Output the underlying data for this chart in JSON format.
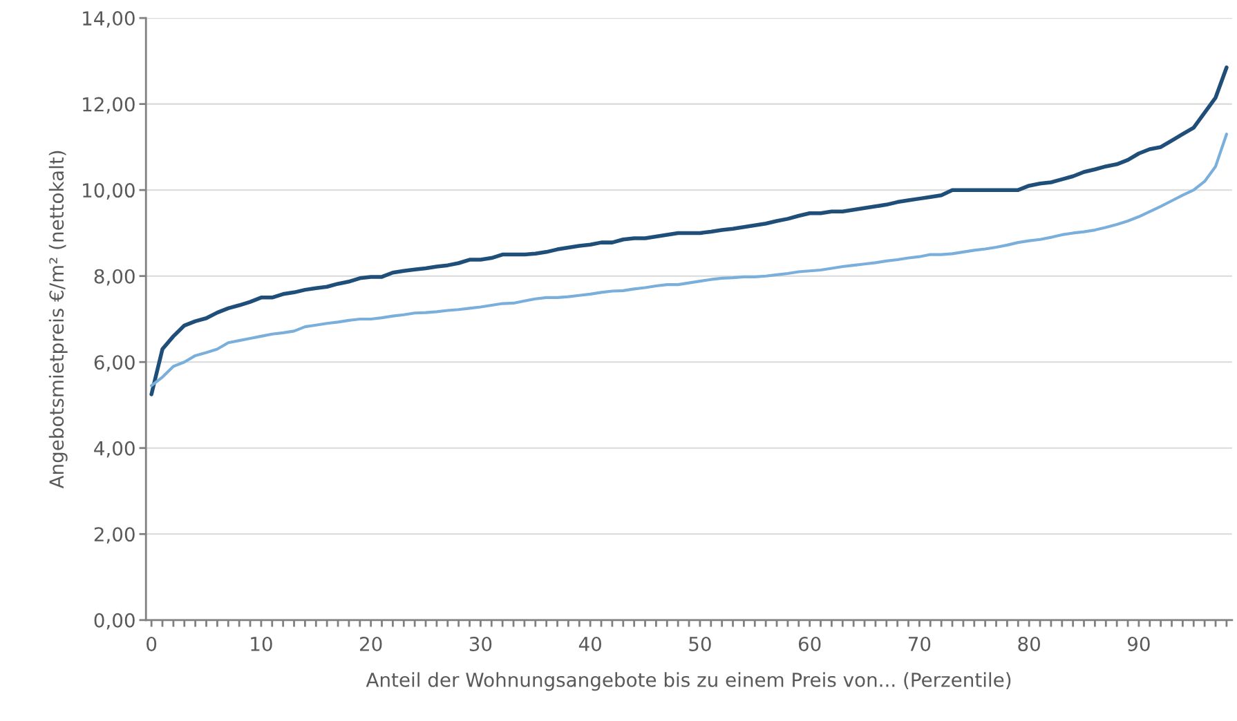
{
  "chart_data": {
    "type": "line",
    "xlabel": "Anteil der Wohnungsangebote bis zu einem Preis von... (Perzentile)",
    "ylabel": "Angebotsmietpreis €/m² (nettokalt)",
    "categories": [
      "0",
      null,
      null,
      null,
      null,
      null,
      null,
      null,
      null,
      null,
      "10",
      null,
      null,
      null,
      null,
      null,
      null,
      null,
      null,
      null,
      "20",
      null,
      null,
      null,
      null,
      null,
      null,
      null,
      null,
      null,
      "30",
      null,
      null,
      null,
      null,
      null,
      null,
      null,
      null,
      null,
      "40",
      null,
      null,
      null,
      null,
      null,
      null,
      null,
      null,
      null,
      "50",
      null,
      null,
      null,
      null,
      null,
      null,
      null,
      null,
      null,
      "60",
      null,
      null,
      null,
      null,
      null,
      null,
      null,
      null,
      null,
      "70",
      null,
      null,
      null,
      null,
      null,
      null,
      null,
      null,
      null,
      "80",
      null,
      null,
      null,
      null,
      null,
      null,
      null,
      null,
      null,
      "90",
      null,
      null,
      null,
      null,
      null,
      null,
      null,
      null
    ],
    "series": [
      {
        "color": "#1f4e79",
        "values": [
          5.25,
          6.3,
          6.6,
          6.85,
          6.95,
          7.02,
          7.15,
          7.25,
          7.32,
          7.4,
          7.5,
          7.5,
          7.58,
          7.62,
          7.68,
          7.72,
          7.75,
          7.82,
          7.87,
          7.95,
          7.98,
          7.98,
          8.08,
          8.12,
          8.15,
          8.18,
          8.22,
          8.25,
          8.3,
          8.38,
          8.38,
          8.42,
          8.5,
          8.5,
          8.5,
          8.52,
          8.56,
          8.62,
          8.66,
          8.7,
          8.73,
          8.78,
          8.78,
          8.85,
          8.88,
          8.88,
          8.92,
          8.96,
          9.0,
          9.0,
          9.0,
          9.03,
          9.07,
          9.1,
          9.14,
          9.18,
          9.22,
          9.28,
          9.33,
          9.4,
          9.46,
          9.46,
          9.5,
          9.5,
          9.54,
          9.58,
          9.62,
          9.66,
          9.72,
          9.76,
          9.8,
          9.84,
          9.88,
          10.0,
          10.0,
          10.0,
          10.0,
          10.0,
          10.0,
          10.0,
          10.1,
          10.15,
          10.18,
          10.25,
          10.32,
          10.42,
          10.48,
          10.55,
          10.6,
          10.7,
          10.85,
          10.95,
          11.0,
          11.15,
          11.3,
          11.45,
          11.8,
          12.15,
          12.85
        ]
      },
      {
        "color": "#7aaedb",
        "values": [
          5.45,
          5.65,
          5.9,
          6.0,
          6.15,
          6.22,
          6.3,
          6.45,
          6.5,
          6.55,
          6.6,
          6.65,
          6.68,
          6.72,
          6.82,
          6.86,
          6.9,
          6.93,
          6.97,
          7.0,
          7.0,
          7.03,
          7.07,
          7.1,
          7.14,
          7.15,
          7.17,
          7.2,
          7.22,
          7.25,
          7.28,
          7.32,
          7.36,
          7.37,
          7.42,
          7.47,
          7.5,
          7.5,
          7.52,
          7.55,
          7.58,
          7.62,
          7.65,
          7.66,
          7.7,
          7.73,
          7.77,
          7.8,
          7.8,
          7.84,
          7.88,
          7.92,
          7.95,
          7.96,
          7.98,
          7.98,
          8.0,
          8.03,
          8.06,
          8.1,
          8.12,
          8.14,
          8.18,
          8.22,
          8.25,
          8.28,
          8.31,
          8.35,
          8.38,
          8.42,
          8.45,
          8.5,
          8.5,
          8.52,
          8.56,
          8.6,
          8.63,
          8.67,
          8.72,
          8.78,
          8.82,
          8.85,
          8.9,
          8.96,
          9.0,
          9.03,
          9.07,
          9.13,
          9.2,
          9.28,
          9.38,
          9.5,
          9.62,
          9.75,
          9.88,
          10.0,
          10.2,
          10.55,
          11.3
        ]
      }
    ],
    "ylim": [
      0,
      14
    ],
    "yticks": [
      {
        "value": 0,
        "label": "0,00"
      },
      {
        "value": 2,
        "label": "2,00"
      },
      {
        "value": 4,
        "label": "4,00"
      },
      {
        "value": 6,
        "label": "6,00"
      },
      {
        "value": 8,
        "label": "8,00"
      },
      {
        "value": 10,
        "label": "10,00"
      },
      {
        "value": 12,
        "label": "12,00"
      },
      {
        "value": 14,
        "label": "14,00"
      }
    ],
    "grid": "y",
    "line_style": "solid"
  }
}
